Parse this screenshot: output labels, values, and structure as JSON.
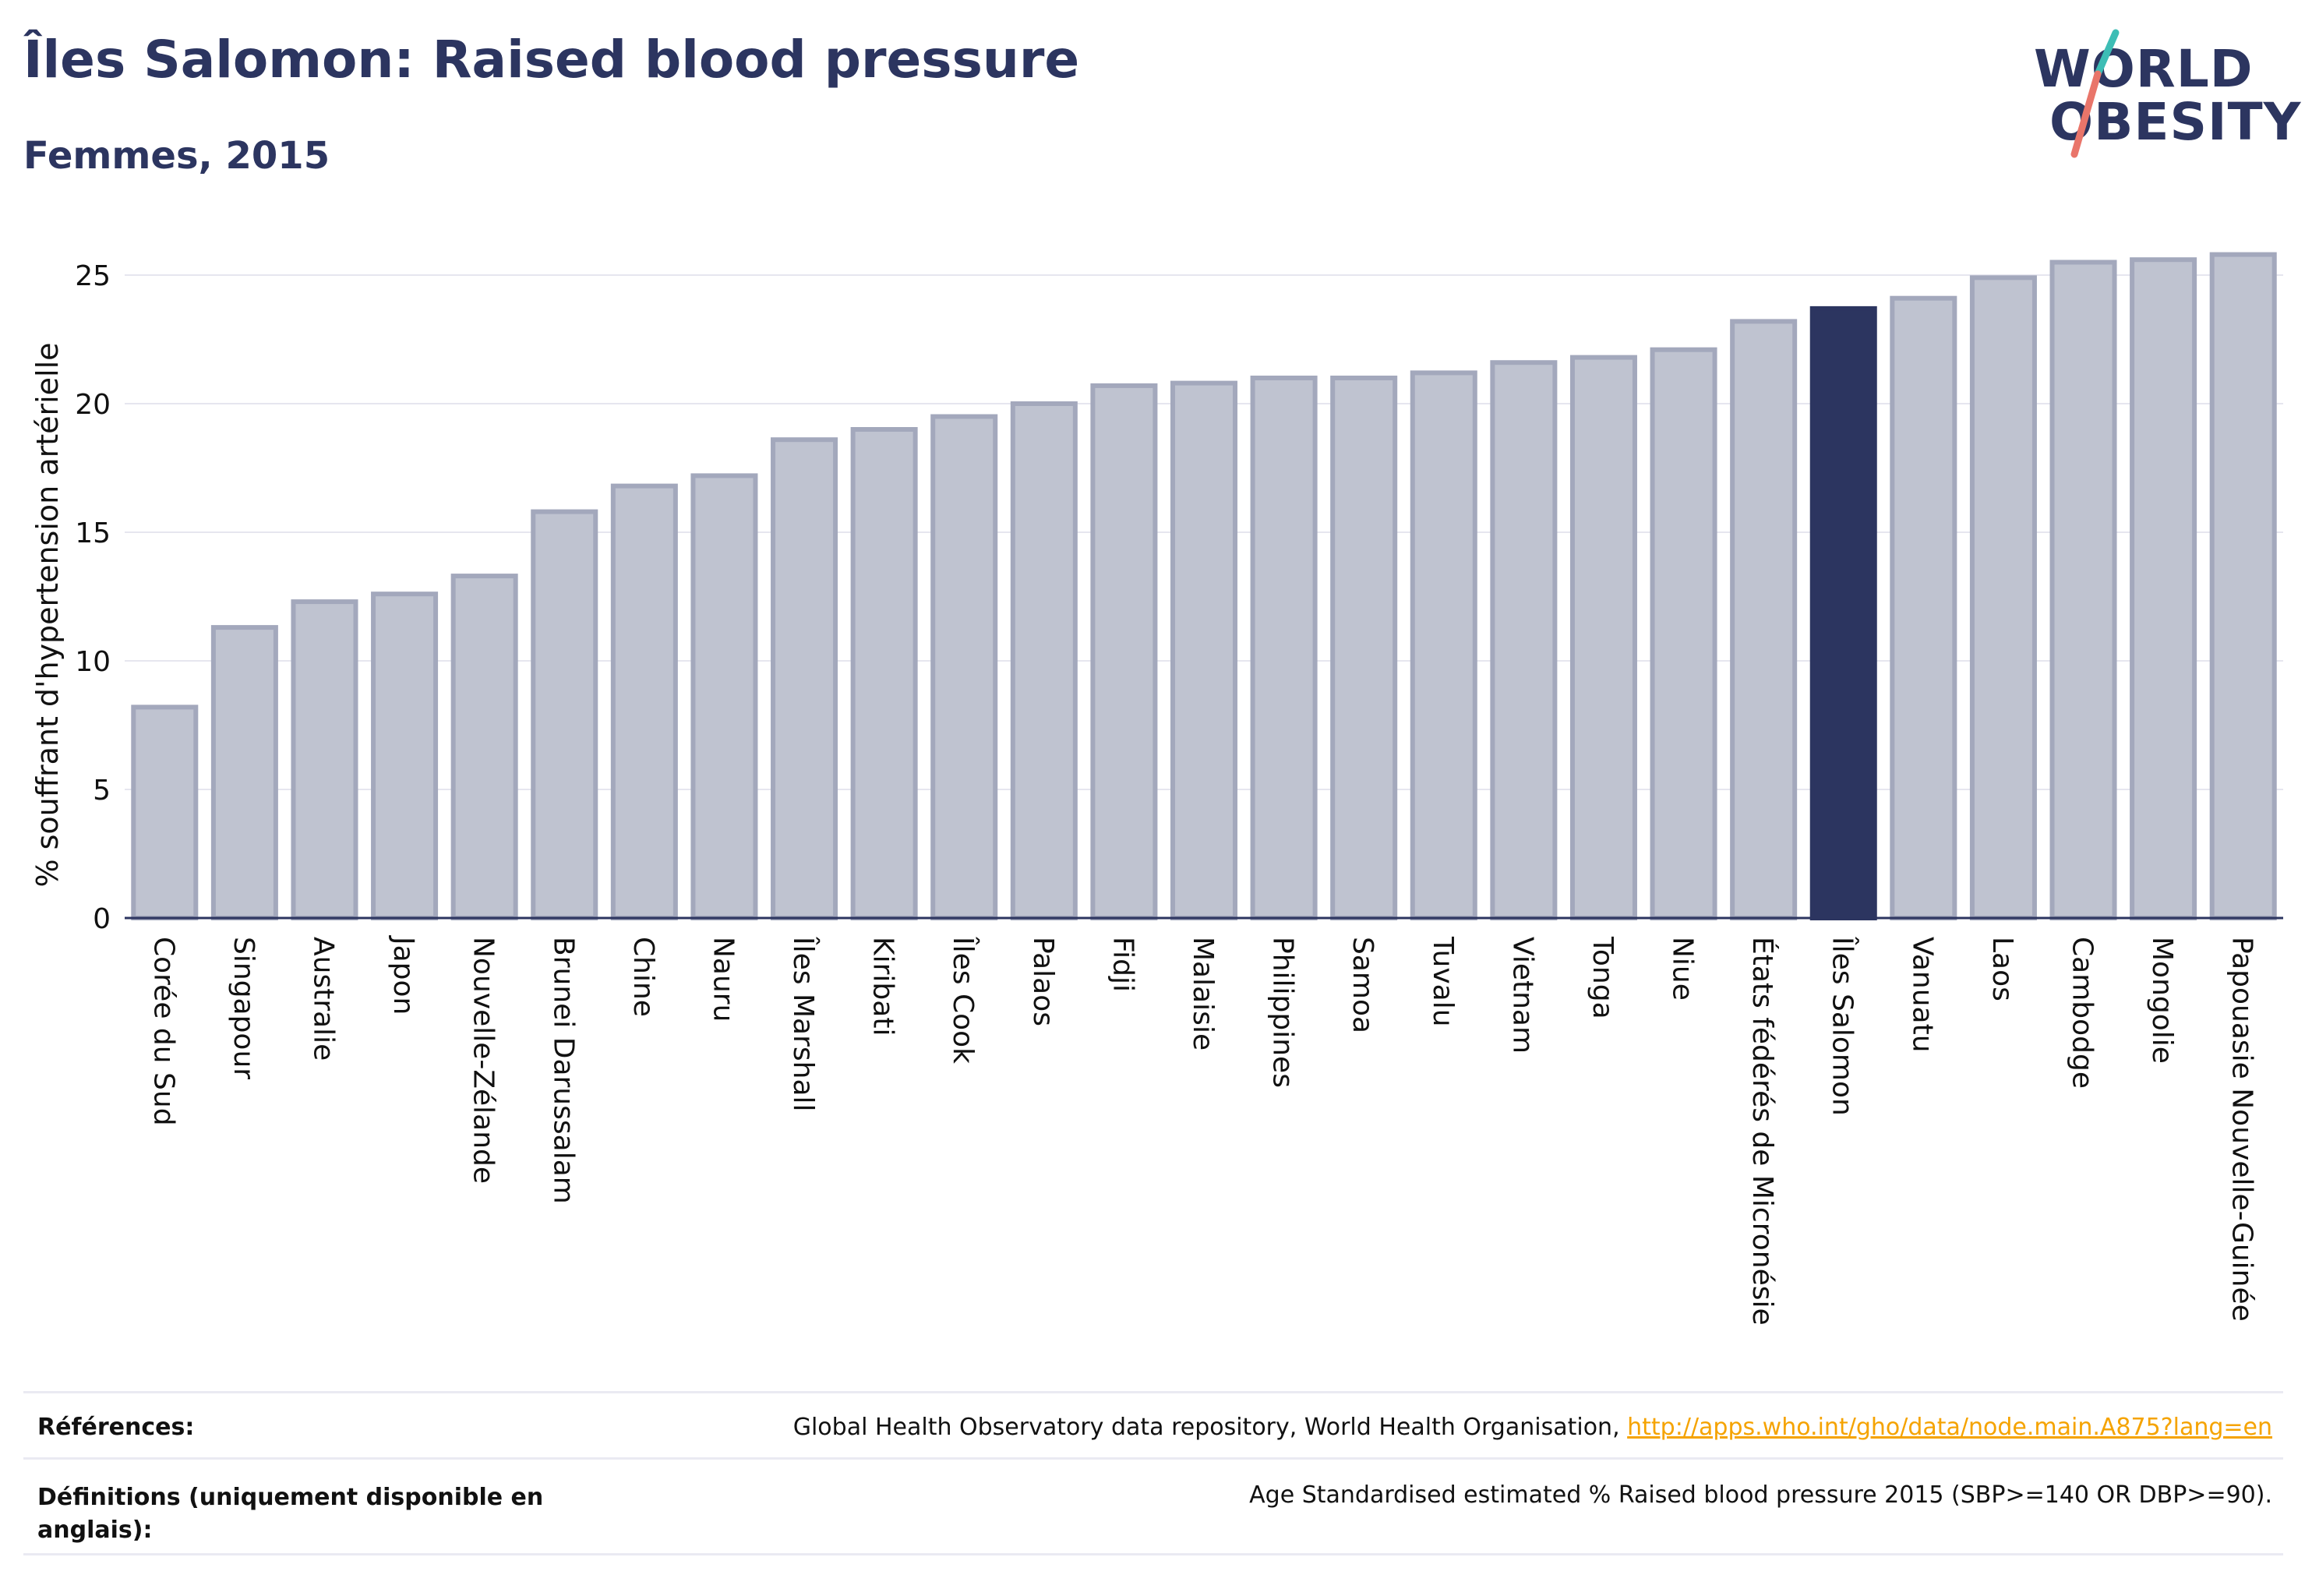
{
  "header": {
    "title": "Îles Salomon: Raised blood pressure",
    "subtitle": "Femmes, 2015"
  },
  "logo": {
    "line1": "WORLD",
    "line2": "OBESITY"
  },
  "colors": {
    "bar": "#bfc3d0",
    "bar_border": "#a3a8bc",
    "highlight": "#2c3560",
    "grid": "#e6e6ef",
    "axis": "#2c3560",
    "link": "#f5a300",
    "logo_teal": "#3dbdb5",
    "logo_coral": "#e9756a"
  },
  "chart_data": {
    "type": "bar",
    "ylabel": "% souffrant d'hypertension artérielle",
    "xlabel": "",
    "ylim": [
      0,
      26
    ],
    "yticks": [
      0,
      5,
      10,
      15,
      20,
      25
    ],
    "grid": true,
    "highlight": "Îles Salomon",
    "categories": [
      "Corée du Sud",
      "Singapour",
      "Australie",
      "Japon",
      "Nouvelle-Zélande",
      "Brunei Darussalam",
      "Chine",
      "Nauru",
      "Îles Marshall",
      "Kiribati",
      "Îles Cook",
      "Palaos",
      "Fidji",
      "Malaisie",
      "Philippines",
      "Samoa",
      "Tuvalu",
      "Vietnam",
      "Tonga",
      "Niue",
      "États fédérés de Micronésie",
      "Îles Salomon",
      "Vanuatu",
      "Laos",
      "Cambodge",
      "Mongolie",
      "Papouasie Nouvelle-Guinée"
    ],
    "values": [
      8.2,
      11.3,
      12.3,
      12.6,
      13.3,
      15.8,
      16.8,
      17.2,
      18.6,
      19.0,
      19.5,
      20.0,
      20.7,
      20.8,
      21.0,
      21.0,
      21.2,
      21.6,
      21.8,
      22.1,
      23.2,
      23.7,
      24.1,
      24.9,
      25.5,
      25.6,
      25.8
    ]
  },
  "references": {
    "label": "Références:",
    "source_text": "Global Health Observatory data repository, World Health Organisation, ",
    "link_text": "http://apps.who.int/gho/data/node.main.A875?lang=en"
  },
  "definitions": {
    "label": "Définitions (uniquement disponible en anglais):",
    "text": "Age Standardised estimated % Raised blood pressure 2015 (SBP>=140 OR DBP>=90)."
  }
}
